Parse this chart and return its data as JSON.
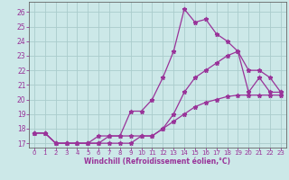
{
  "xlabel": "Windchill (Refroidissement éolien,°C)",
  "background_color": "#cce8e8",
  "grid_color": "#aacccc",
  "line_color": "#993399",
  "spine_color": "#666666",
  "xlim": [
    -0.5,
    23.5
  ],
  "ylim": [
    16.7,
    26.7
  ],
  "xticks": [
    0,
    1,
    2,
    3,
    4,
    5,
    6,
    7,
    8,
    9,
    10,
    11,
    12,
    13,
    14,
    15,
    16,
    17,
    18,
    19,
    20,
    21,
    22,
    23
  ],
  "yticks": [
    17,
    18,
    19,
    20,
    21,
    22,
    23,
    24,
    25,
    26
  ],
  "curve1_x": [
    0,
    1,
    2,
    3,
    4,
    5,
    6,
    7,
    8,
    9,
    10,
    11,
    12,
    13,
    14,
    15,
    16,
    17,
    18,
    19,
    20,
    21,
    22,
    23
  ],
  "curve1_y": [
    17.7,
    17.7,
    17.0,
    17.0,
    17.0,
    17.0,
    17.0,
    17.5,
    17.5,
    19.2,
    19.2,
    20.0,
    21.5,
    23.3,
    26.2,
    25.3,
    25.5,
    24.5,
    24.0,
    23.3,
    20.5,
    21.5,
    20.5,
    20.5
  ],
  "curve2_x": [
    0,
    1,
    2,
    3,
    4,
    5,
    6,
    7,
    8,
    9,
    10,
    11,
    12,
    13,
    14,
    15,
    16,
    17,
    18,
    19,
    20,
    21,
    22,
    23
  ],
  "curve2_y": [
    17.7,
    17.7,
    17.0,
    17.0,
    17.0,
    17.0,
    17.5,
    17.5,
    17.5,
    17.5,
    17.5,
    17.5,
    18.0,
    19.0,
    20.5,
    21.5,
    22.0,
    22.5,
    23.0,
    23.3,
    22.0,
    22.0,
    21.5,
    20.5
  ],
  "curve3_x": [
    0,
    1,
    2,
    3,
    4,
    5,
    6,
    7,
    8,
    9,
    10,
    11,
    12,
    13,
    14,
    15,
    16,
    17,
    18,
    19,
    20,
    21,
    22,
    23
  ],
  "curve3_y": [
    17.7,
    17.7,
    17.0,
    17.0,
    17.0,
    17.0,
    17.0,
    17.0,
    17.0,
    17.0,
    17.5,
    17.5,
    18.0,
    18.5,
    19.0,
    19.5,
    19.8,
    20.0,
    20.2,
    20.3,
    20.3,
    20.3,
    20.3,
    20.3
  ],
  "tick_fontsize": 5,
  "xlabel_fontsize": 5.5,
  "marker_size": 2.5,
  "line_width": 0.9
}
